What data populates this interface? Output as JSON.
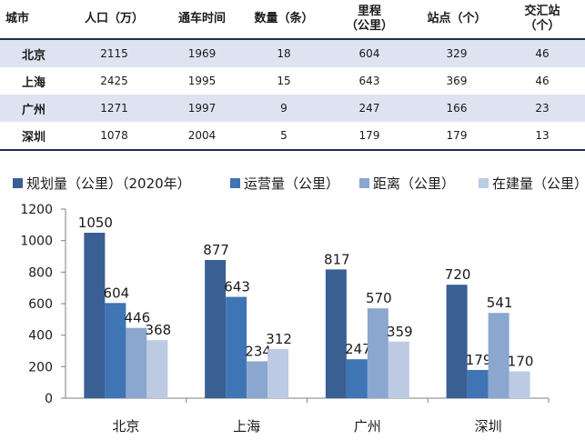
{
  "table": {
    "headers": [
      "城市",
      "人口（万）",
      "通车时间",
      "数量（条）",
      "里程\n（公里）",
      "站点（个）",
      "交汇站\n（个）"
    ],
    "rows": [
      [
        "北京",
        "2115",
        "1969",
        "18",
        "604",
        "329",
        "46"
      ],
      [
        "上海",
        "2425",
        "1995",
        "15",
        "643",
        "369",
        "46"
      ],
      [
        "广州",
        "1271",
        "1997",
        "9",
        "247",
        "166",
        "23"
      ],
      [
        "深圳",
        "1078",
        "2004",
        "5",
        "179",
        "179",
        "13"
      ]
    ]
  },
  "chart_data": {
    "type": "bar",
    "categories": [
      "北京",
      "上海",
      "广州",
      "深圳"
    ],
    "series": [
      {
        "name": "规划量（公里）（2020年）",
        "values": [
          1050,
          877,
          817,
          720
        ],
        "color": "#3a5f93"
      },
      {
        "name": "运营量（公里）",
        "values": [
          604,
          643,
          247,
          179
        ],
        "color": "#3f74b5"
      },
      {
        "name": "距离（公里）",
        "values": [
          446,
          234,
          570,
          541
        ],
        "color": "#8ba6cf"
      },
      {
        "name": "在建量（公里）",
        "values": [
          368,
          312,
          359,
          170
        ],
        "color": "#bccbe3"
      }
    ],
    "ylim": [
      0,
      1200
    ],
    "yticks": [
      0,
      200,
      400,
      600,
      800,
      1000,
      1200
    ],
    "grid": false,
    "legend": "top"
  }
}
